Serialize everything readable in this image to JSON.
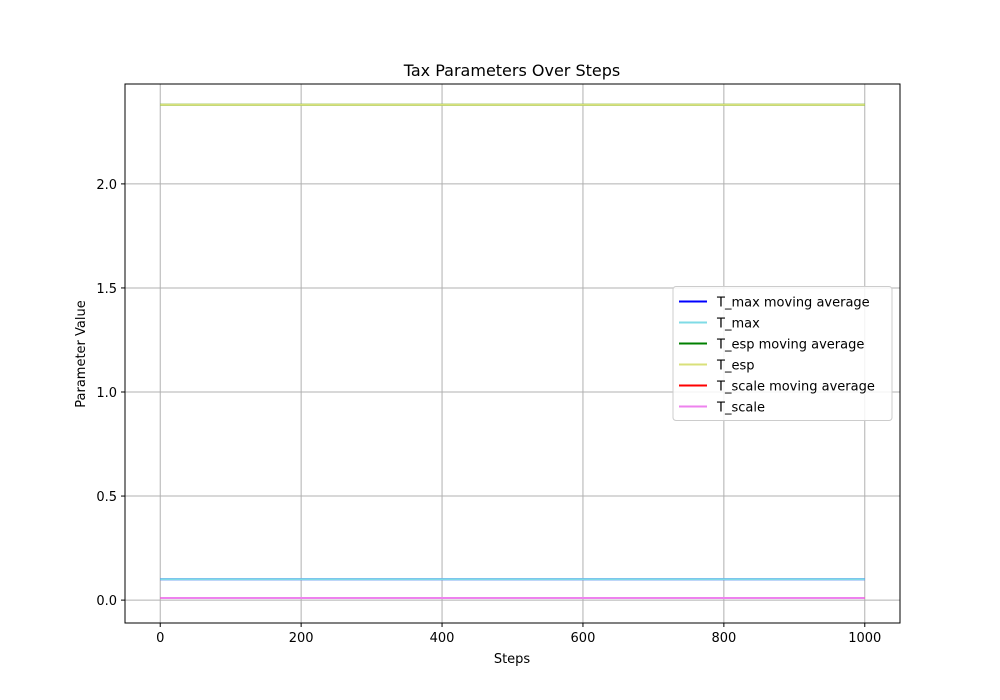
{
  "chart_data": {
    "type": "line",
    "title": "Tax Parameters Over Steps",
    "xlabel": "Steps",
    "ylabel": "Parameter Value",
    "xlim": [
      -50,
      1050
    ],
    "ylim": [
      -0.11,
      2.48
    ],
    "xticks": [
      0,
      200,
      400,
      600,
      800,
      1000
    ],
    "xtick_labels": [
      "0",
      "200",
      "400",
      "600",
      "800",
      "1000"
    ],
    "yticks": [
      0.0,
      0.5,
      1.0,
      1.5,
      2.0
    ],
    "ytick_labels": [
      "0.0",
      "0.5",
      "1.0",
      "1.5",
      "2.0"
    ],
    "grid": true,
    "legend_position": "center-right",
    "series": [
      {
        "name": "T_max moving average",
        "color": "#0000ff",
        "x": [
          0,
          1000
        ],
        "y": [
          0.1,
          0.1
        ]
      },
      {
        "name": "T_max",
        "color": "#7fdbe6",
        "x": [
          0,
          1000
        ],
        "y": [
          0.1,
          0.1
        ]
      },
      {
        "name": "T_esp moving average",
        "color": "#008000",
        "x": [
          0,
          1000
        ],
        "y": [
          2.38,
          2.38
        ]
      },
      {
        "name": "T_esp",
        "color": "#d9e07a",
        "x": [
          0,
          1000
        ],
        "y": [
          2.38,
          2.38
        ]
      },
      {
        "name": "T_scale moving average",
        "color": "#ff0000",
        "x": [
          0,
          1000
        ],
        "y": [
          0.01,
          0.01
        ]
      },
      {
        "name": "T_scale",
        "color": "#ee82ee",
        "x": [
          0,
          1000
        ],
        "y": [
          0.01,
          0.01
        ]
      }
    ]
  }
}
